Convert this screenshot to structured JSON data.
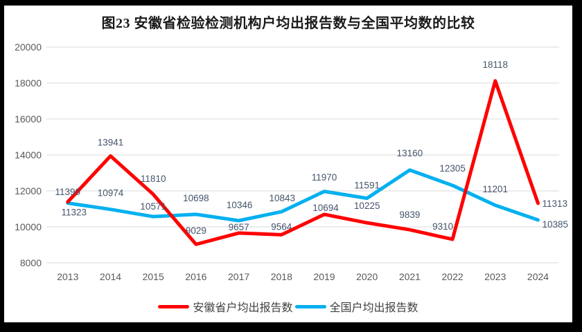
{
  "chart_data": {
    "type": "line",
    "title": "图23 安徽省检验检测机构户均出报告数与全国平均数的比较",
    "categories": [
      "2013",
      "2014",
      "2015",
      "2016",
      "2017",
      "2018",
      "2019",
      "2020",
      "2021",
      "2022",
      "2023",
      "2024"
    ],
    "series": [
      {
        "name": "安徽省户均出报告数",
        "color": "#FF0000",
        "values": [
          11390,
          13941,
          11810,
          9029,
          9657,
          9564,
          10694,
          10225,
          9839,
          9310,
          18118,
          11313
        ]
      },
      {
        "name": "全国户均出报告数",
        "color": "#00B0F0",
        "values": [
          11323,
          10974,
          10571,
          10698,
          10346,
          10843,
          11970,
          11591,
          13160,
          12305,
          11201,
          10385
        ]
      }
    ],
    "ylim": [
      8000,
      20000
    ],
    "ytick_step": 2000,
    "yticks": [
      "20000",
      "18000",
      "16000",
      "14000",
      "12000",
      "10000",
      "8000"
    ],
    "grid": true,
    "data_labels": true,
    "legend_position": "bottom",
    "colors": {
      "gridline": "#D9D9D9",
      "axis_text": "#595959",
      "data_label_text": "#44546A",
      "title_text": "#1a1a1a",
      "frame_background": "#000000",
      "plot_background": "#ffffff"
    }
  }
}
